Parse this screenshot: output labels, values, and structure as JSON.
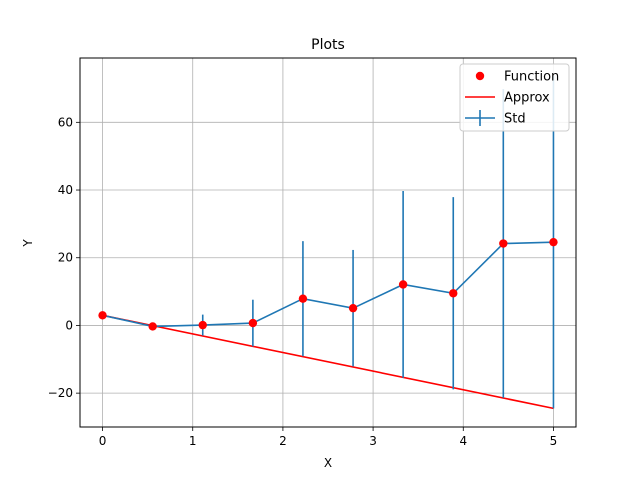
{
  "chart_data": {
    "type": "line",
    "title": "Plots",
    "xlabel": "X",
    "ylabel": "Y",
    "xlim": [
      -0.25,
      5.25
    ],
    "ylim": [
      -30,
      79
    ],
    "grid": true,
    "legend_position": "top-right",
    "x_ticks": [
      0,
      1,
      2,
      3,
      4,
      5
    ],
    "y_ticks": [
      -20,
      0,
      20,
      40,
      60
    ],
    "x_tick_labels": [
      "0",
      "1",
      "2",
      "3",
      "4",
      "5"
    ],
    "y_tick_labels": [
      "−20",
      "0",
      "20",
      "40",
      "60"
    ],
    "x": [
      0,
      0.556,
      1.111,
      1.667,
      2.222,
      2.778,
      3.333,
      3.889,
      4.444,
      5.0
    ],
    "series": [
      {
        "name": "Function",
        "kind": "points",
        "color": "#ff0000",
        "values": [
          3.0,
          -0.3,
          0.1,
          0.7,
          7.9,
          5.1,
          12.1,
          9.5,
          24.2,
          24.6
        ]
      },
      {
        "name": "Approx",
        "kind": "line",
        "color": "#ff0000",
        "values": [
          3.0,
          -24.5
        ],
        "x": [
          0,
          5.0
        ]
      },
      {
        "name": "Std",
        "kind": "errorbar",
        "color": "#1f77b4",
        "values": [
          3.0,
          -0.3,
          0.1,
          0.7,
          7.9,
          5.1,
          12.1,
          9.5,
          24.2,
          24.6
        ],
        "errors": [
          0,
          0.3,
          3.1,
          6.9,
          17.0,
          17.2,
          27.6,
          28.4,
          45.6,
          49.1
        ]
      }
    ]
  }
}
